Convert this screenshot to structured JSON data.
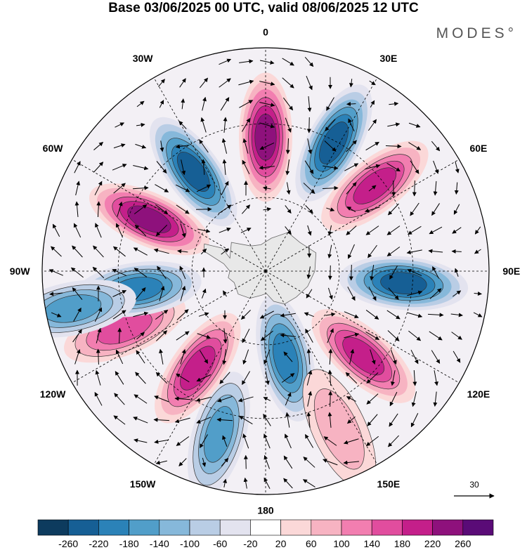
{
  "title": "Base 03/06/2025 00 UTC, valid 08/06/2025 12 UTC",
  "brand": "MODES°",
  "colors": {
    "bins": [
      "#0d3b5e",
      "#165f95",
      "#2b82b8",
      "#519ec9",
      "#86b8da",
      "#b9cde5",
      "#e3e3ef",
      "#ffffff",
      "#fbd8d8",
      "#f7b3c2",
      "#f27eb0",
      "#e14d9e",
      "#c41f8a",
      "#8e117c",
      "#5a0b77"
    ],
    "land": "#e8e8e8",
    "lines": "#000000"
  },
  "map": {
    "projection": "south-polar-stereographic",
    "longitude_labels": [
      {
        "lon": 0,
        "text": "0"
      },
      {
        "lon": 30,
        "text": "30E"
      },
      {
        "lon": 60,
        "text": "60E"
      },
      {
        "lon": 90,
        "text": "90E"
      },
      {
        "lon": 120,
        "text": "120E"
      },
      {
        "lon": 150,
        "text": "150E"
      },
      {
        "lon": 180,
        "text": "180"
      },
      {
        "lon": -150,
        "text": "150W"
      },
      {
        "lon": -120,
        "text": "120W"
      },
      {
        "lon": -90,
        "text": "90W"
      },
      {
        "lon": -60,
        "text": "60W"
      },
      {
        "lon": -30,
        "text": "30W"
      }
    ],
    "anomalies": [
      {
        "lon": -36,
        "r": 0.55,
        "value": -240
      },
      {
        "lon": 0,
        "r": 0.6,
        "value": 250
      },
      {
        "lon": 28,
        "r": 0.65,
        "value": -250
      },
      {
        "lon": 52,
        "r": 0.62,
        "value": 190
      },
      {
        "lon": 95,
        "r": 0.62,
        "value": -230
      },
      {
        "lon": 131,
        "r": 0.58,
        "value": 210
      },
      {
        "lon": 167,
        "r": 0.4,
        "value": -180
      },
      {
        "lon": 155,
        "r": 0.78,
        "value": 90
      },
      {
        "lon": -164,
        "r": 0.76,
        "value": -150
      },
      {
        "lon": -145,
        "r": 0.53,
        "value": 200
      },
      {
        "lon": -112,
        "r": 0.68,
        "value": 170
      },
      {
        "lon": -98,
        "r": 0.58,
        "value": -190
      },
      {
        "lon": -101,
        "r": 0.88,
        "value": -150
      },
      {
        "lon": -66,
        "r": 0.57,
        "value": 250
      }
    ],
    "reference_vector": "30"
  },
  "colorbar": {
    "ticks": [
      "-260",
      "-220",
      "-180",
      "-140",
      "-100",
      "-60",
      "-20",
      "20",
      "60",
      "100",
      "140",
      "180",
      "220",
      "260"
    ]
  }
}
